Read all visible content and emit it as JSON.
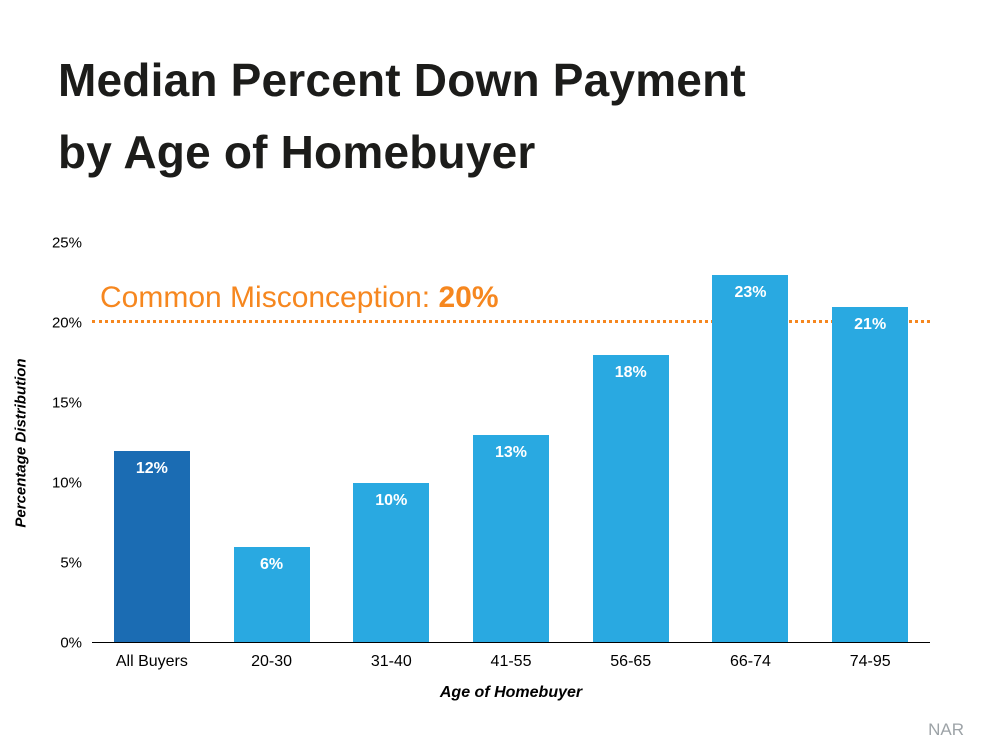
{
  "title": {
    "line1": "Median Percent Down Payment",
    "line2": "by Age of Homebuyer"
  },
  "annotation": {
    "prefix": "Common Misconception: ",
    "bold_value": "20%"
  },
  "chart_data": {
    "type": "bar",
    "title": "Median Percent Down Payment by Age of Homebuyer",
    "categories": [
      "All Buyers",
      "20-30",
      "31-40",
      "41-55",
      "56-65",
      "66-74",
      "74-95"
    ],
    "values": [
      12,
      6,
      10,
      13,
      18,
      23,
      21
    ],
    "bar_labels": [
      "12%",
      "6%",
      "10%",
      "13%",
      "18%",
      "23%",
      "21%"
    ],
    "xlabel": "Age of Homebuyer",
    "ylabel": "Percentage Distribution",
    "ylim": [
      0,
      25
    ],
    "ytick_labels": [
      "0%",
      "5%",
      "10%",
      "15%",
      "20%",
      "25%"
    ],
    "grid": false,
    "legend": false,
    "reference_line": {
      "value": 20,
      "style": "dotted",
      "color": "#f6871f",
      "label": "Common Misconception: 20%"
    },
    "colors": {
      "highlight_bar": "#1b6cb3",
      "bar": "#29a9e1",
      "annotation": "#f6871f"
    },
    "highlight_index": 0
  },
  "footer": {
    "attribution": "NAR"
  }
}
